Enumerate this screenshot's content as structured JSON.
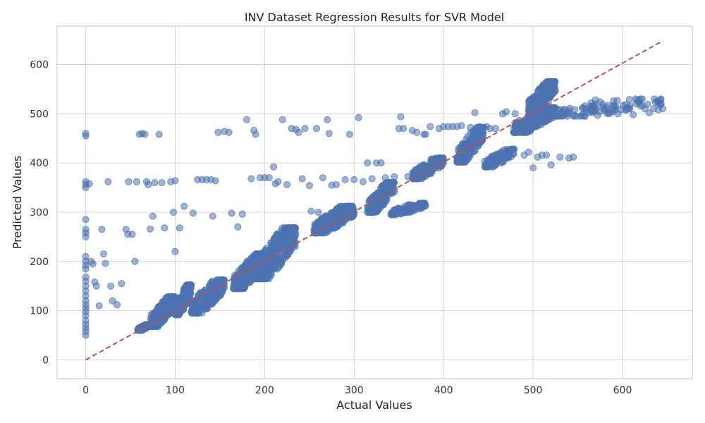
{
  "chart_data": {
    "type": "scatter",
    "title": "INV Dataset Regression Results for SVR Model",
    "xlabel": "Actual Values",
    "ylabel": "Predicted Values",
    "xlim": [
      -32,
      678
    ],
    "ylim": [
      -38,
      678
    ],
    "xticks": [
      0,
      100,
      200,
      300,
      400,
      500,
      600
    ],
    "yticks": [
      0,
      100,
      200,
      300,
      400,
      500,
      600
    ],
    "grid": true,
    "point_color": "#4c72b0",
    "reference_line": {
      "x": [
        0,
        645
      ],
      "y": [
        0,
        648
      ],
      "color": "#c44e52",
      "style": "dashed"
    },
    "clusters": [
      {
        "x": [
          58,
          72
        ],
        "y": [
          60,
          72
        ],
        "n": 90
      },
      {
        "x": [
          72,
          100
        ],
        "y": [
          68,
          128
        ],
        "n": 240
      },
      {
        "x": [
          100,
          118
        ],
        "y": [
          92,
          152
        ],
        "n": 140
      },
      {
        "x": [
          118,
          155
        ],
        "y": [
          95,
          162
        ],
        "n": 260
      },
      {
        "x": [
          165,
          200
        ],
        "y": [
          145,
          215
        ],
        "n": 260
      },
      {
        "x": [
          190,
          235
        ],
        "y": [
          165,
          268
        ],
        "n": 320
      },
      {
        "x": [
          255,
          300
        ],
        "y": [
          258,
          312
        ],
        "n": 260
      },
      {
        "x": [
          315,
          345
        ],
        "y": [
          300,
          360
        ],
        "n": 170
      },
      {
        "x": [
          340,
          380
        ],
        "y": [
          295,
          318
        ],
        "n": 90
      },
      {
        "x": [
          365,
          400
        ],
        "y": [
          368,
          410
        ],
        "n": 150
      },
      {
        "x": [
          415,
          445
        ],
        "y": [
          402,
          472
        ],
        "n": 180
      },
      {
        "x": [
          445,
          480
        ],
        "y": [
          392,
          428
        ],
        "n": 90
      },
      {
        "x": [
          478,
          525
        ],
        "y": [
          462,
          512
        ],
        "n": 230
      },
      {
        "x": [
          495,
          525
        ],
        "y": [
          505,
          565
        ],
        "n": 220
      },
      {
        "x": [
          525,
          645
        ],
        "y": [
          495,
          530
        ],
        "n": 90
      }
    ],
    "scatter_points": [
      [
        0,
        460
      ],
      [
        0,
        455
      ],
      [
        0,
        362
      ],
      [
        0,
        356
      ],
      [
        0,
        350
      ],
      [
        0,
        285
      ],
      [
        0,
        265
      ],
      [
        0,
        258
      ],
      [
        0,
        250
      ],
      [
        0,
        210
      ],
      [
        0,
        200
      ],
      [
        0,
        192
      ],
      [
        0,
        185
      ],
      [
        0,
        168
      ],
      [
        0,
        160
      ],
      [
        0,
        150
      ],
      [
        0,
        140
      ],
      [
        0,
        130
      ],
      [
        0,
        120
      ],
      [
        0,
        112
      ],
      [
        0,
        105
      ],
      [
        0,
        98
      ],
      [
        0,
        90
      ],
      [
        0,
        80
      ],
      [
        0,
        72
      ],
      [
        0,
        65
      ],
      [
        0,
        58
      ],
      [
        0,
        50
      ],
      [
        4,
        358
      ],
      [
        6,
        200
      ],
      [
        8,
        195
      ],
      [
        10,
        158
      ],
      [
        12,
        150
      ],
      [
        15,
        110
      ],
      [
        18,
        265
      ],
      [
        20,
        215
      ],
      [
        22,
        196
      ],
      [
        25,
        362
      ],
      [
        28,
        150
      ],
      [
        30,
        120
      ],
      [
        35,
        112
      ],
      [
        40,
        155
      ],
      [
        45,
        265
      ],
      [
        47,
        255
      ],
      [
        48,
        362
      ],
      [
        52,
        255
      ],
      [
        55,
        200
      ],
      [
        57,
        362
      ],
      [
        60,
        458
      ],
      [
        63,
        460
      ],
      [
        66,
        458
      ],
      [
        68,
        362
      ],
      [
        70,
        356
      ],
      [
        72,
        266
      ],
      [
        75,
        292
      ],
      [
        77,
        360
      ],
      [
        82,
        458
      ],
      [
        85,
        360
      ],
      [
        88,
        268
      ],
      [
        95,
        362
      ],
      [
        100,
        364
      ],
      [
        98,
        300
      ],
      [
        100,
        220
      ],
      [
        105,
        268
      ],
      [
        110,
        312
      ],
      [
        120,
        298
      ],
      [
        125,
        366
      ],
      [
        130,
        366
      ],
      [
        135,
        366
      ],
      [
        140,
        366
      ],
      [
        145,
        364
      ],
      [
        142,
        292
      ],
      [
        148,
        462
      ],
      [
        155,
        464
      ],
      [
        160,
        462
      ],
      [
        163,
        298
      ],
      [
        170,
        270
      ],
      [
        175,
        296
      ],
      [
        180,
        488
      ],
      [
        185,
        368
      ],
      [
        188,
        466
      ],
      [
        190,
        458
      ],
      [
        195,
        370
      ],
      [
        200,
        370
      ],
      [
        205,
        370
      ],
      [
        210,
        392
      ],
      [
        212,
        358
      ],
      [
        215,
        362
      ],
      [
        220,
        488
      ],
      [
        225,
        356
      ],
      [
        230,
        470
      ],
      [
        235,
        468
      ],
      [
        238,
        462
      ],
      [
        242,
        368
      ],
      [
        245,
        470
      ],
      [
        250,
        354
      ],
      [
        252,
        302
      ],
      [
        258,
        470
      ],
      [
        260,
        300
      ],
      [
        265,
        370
      ],
      [
        270,
        488
      ],
      [
        272,
        460
      ],
      [
        275,
        355
      ],
      [
        280,
        356
      ],
      [
        290,
        366
      ],
      [
        295,
        458
      ],
      [
        300,
        366
      ],
      [
        305,
        492
      ],
      [
        310,
        362
      ],
      [
        315,
        400
      ],
      [
        320,
        368
      ],
      [
        325,
        400
      ],
      [
        330,
        400
      ],
      [
        335,
        370
      ],
      [
        345,
        372
      ],
      [
        350,
        470
      ],
      [
        352,
        494
      ],
      [
        355,
        470
      ],
      [
        360,
        372
      ],
      [
        365,
        466
      ],
      [
        370,
        462
      ],
      [
        378,
        458
      ],
      [
        380,
        458
      ],
      [
        385,
        474
      ],
      [
        395,
        470
      ],
      [
        400,
        474
      ],
      [
        405,
        474
      ],
      [
        410,
        474
      ],
      [
        415,
        474
      ],
      [
        420,
        476
      ],
      [
        430,
        472
      ],
      [
        435,
        502
      ],
      [
        440,
        474
      ],
      [
        448,
        474
      ],
      [
        452,
        470
      ],
      [
        458,
        470
      ],
      [
        466,
        500
      ],
      [
        470,
        504
      ],
      [
        480,
        500
      ],
      [
        490,
        416
      ],
      [
        495,
        422
      ],
      [
        500,
        390
      ],
      [
        505,
        412
      ],
      [
        510,
        416
      ],
      [
        515,
        416
      ],
      [
        520,
        396
      ],
      [
        530,
        412
      ],
      [
        540,
        410
      ],
      [
        545,
        412
      ],
      [
        555,
        512
      ],
      [
        560,
        508
      ],
      [
        565,
        522
      ],
      [
        570,
        528
      ],
      [
        575,
        524
      ],
      [
        580,
        506
      ],
      [
        585,
        500
      ],
      [
        590,
        526
      ],
      [
        595,
        500
      ],
      [
        605,
        512
      ],
      [
        612,
        498
      ],
      [
        615,
        520
      ],
      [
        620,
        516
      ],
      [
        625,
        510
      ],
      [
        630,
        502
      ],
      [
        635,
        510
      ],
      [
        640,
        508
      ],
      [
        645,
        510
      ]
    ]
  }
}
